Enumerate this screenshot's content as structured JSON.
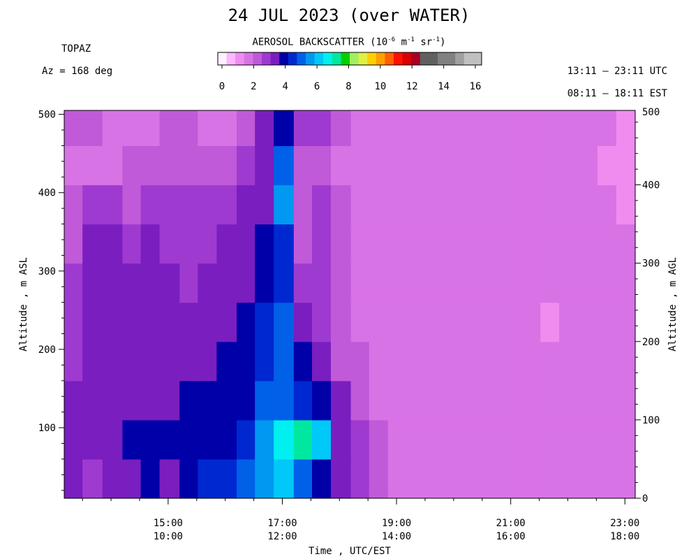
{
  "title": "24 JUL 2023 (over WATER)",
  "site": "TOPAZ",
  "azimuth": "Az = 168 deg",
  "utc_range": "13:11 – 23:11 UTC",
  "est_range": "08:11 – 18:11 EST",
  "colorbar": {
    "title_prefix": "AEROSOL BACKSCATTER (10",
    "title_exp1": "-6",
    "title_mid1": " m",
    "title_exp2": "-1",
    "title_mid2": " sr",
    "title_exp3": "-1",
    "title_suffix": ")",
    "ticks": [
      "0",
      "2",
      "4",
      "6",
      "8",
      "10",
      "12",
      "14",
      "16"
    ],
    "colors": [
      "#fff0ff",
      "#ffb8ff",
      "#f08cf0",
      "#d873e6",
      "#c05ad8",
      "#9f3ad0",
      "#7a1ec0",
      "#0000a8",
      "#0028d0",
      "#0060e8",
      "#0098f0",
      "#00c8f8",
      "#00f0f0",
      "#00e8a0",
      "#00d000",
      "#a0f060",
      "#e0f040",
      "#ffd000",
      "#ffa000",
      "#ff6000",
      "#ff1000",
      "#d80000",
      "#a80020",
      "#606060",
      "#606060",
      "#808080",
      "#808080",
      "#a0a0a0",
      "#c0c0c0",
      "#c0c0c0"
    ]
  },
  "axes": {
    "xlabel": "Time , UTC/EST",
    "ylabel_left": "Altitude , m ASL",
    "ylabel_right": "Altitude , m AGL",
    "left_ticks": [
      "100",
      "200",
      "300",
      "400",
      "500"
    ],
    "right_ticks": [
      "0",
      "100",
      "200",
      "300",
      "400",
      "500"
    ],
    "x_ticks_utc": [
      "15:00",
      "17:00",
      "19:00",
      "21:00",
      "23:00"
    ],
    "x_ticks_est": [
      "10:00",
      "12:00",
      "14:00",
      "16:00",
      "18:00"
    ]
  },
  "chart_data": {
    "type": "heatmap",
    "title": "24 JUL 2023 (over WATER)",
    "xlabel": "Time , UTC/EST",
    "ylabel": "Altitude , m ASL",
    "y2label": "Altitude , m AGL",
    "x_range_utc": [
      "13:11",
      "23:11"
    ],
    "y_range_m_asl": [
      10,
      505
    ],
    "value_units": "10^-6 m^-1 sr^-1",
    "colorbar_range": [
      0,
      16
    ],
    "x_edges_hours_utc": [
      13.18,
      13.5,
      13.85,
      14.2,
      14.52,
      14.85,
      15.2,
      15.52,
      15.85,
      16.2,
      16.52,
      16.85,
      17.2,
      17.52,
      17.85,
      18.2,
      18.52,
      18.85,
      19.2,
      19.52,
      19.85,
      20.2,
      20.52,
      20.85,
      21.2,
      21.52,
      21.85,
      22.2,
      22.52,
      22.85,
      23.18
    ],
    "y_edges_m": [
      10,
      60,
      110,
      160,
      210,
      260,
      310,
      360,
      410,
      460,
      505
    ],
    "z": [
      [
        3.2,
        3.0,
        3.4,
        3.6,
        3.8,
        3.6,
        4.0,
        4.4,
        4.4,
        4.8,
        5.6,
        6.0,
        5.0,
        3.8,
        3.2,
        2.8,
        2.2,
        2.0,
        2.0,
        2.0,
        2.0,
        2.0,
        2.0,
        2.0,
        2.0,
        2.0,
        2.0,
        2.0,
        2.0,
        2.0
      ],
      [
        3.4,
        3.6,
        3.4,
        3.8,
        3.8,
        3.8,
        4.0,
        4.0,
        4.2,
        4.6,
        5.8,
        6.4,
        7.0,
        6.2,
        3.6,
        3.0,
        2.4,
        2.0,
        2.0,
        2.0,
        2.0,
        2.0,
        2.0,
        2.0,
        2.0,
        2.0,
        2.0,
        2.0,
        2.0,
        2.0
      ],
      [
        3.4,
        3.6,
        3.6,
        3.4,
        3.6,
        3.6,
        3.8,
        4.0,
        4.0,
        4.0,
        4.8,
        5.0,
        4.6,
        4.2,
        3.2,
        2.6,
        2.0,
        2.0,
        2.0,
        2.0,
        2.0,
        2.0,
        2.0,
        2.0,
        2.0,
        2.0,
        2.0,
        2.0,
        2.0,
        2.0
      ],
      [
        3.0,
        3.4,
        3.4,
        3.2,
        3.2,
        3.4,
        3.4,
        3.6,
        3.8,
        4.0,
        4.6,
        4.8,
        3.8,
        3.2,
        2.4,
        2.2,
        1.8,
        1.8,
        1.8,
        1.8,
        1.8,
        1.8,
        1.8,
        1.8,
        1.8,
        1.8,
        1.8,
        1.8,
        1.8,
        1.8
      ],
      [
        3.0,
        3.2,
        3.4,
        3.2,
        3.2,
        3.2,
        3.4,
        3.2,
        3.4,
        3.8,
        4.4,
        4.8,
        3.4,
        2.8,
        2.4,
        1.8,
        1.8,
        1.8,
        1.8,
        1.8,
        1.8,
        1.6,
        1.8,
        1.8,
        1.8,
        1.4,
        1.6,
        1.6,
        1.6,
        1.6
      ],
      [
        3.0,
        3.4,
        3.4,
        3.2,
        3.2,
        3.2,
        3.0,
        3.2,
        3.4,
        3.6,
        3.8,
        4.6,
        2.8,
        2.8,
        2.2,
        1.8,
        1.8,
        1.8,
        1.8,
        1.8,
        1.8,
        1.8,
        1.8,
        1.8,
        1.8,
        1.8,
        1.8,
        1.8,
        1.8,
        1.8
      ],
      [
        2.6,
        3.2,
        3.2,
        3.0,
        3.2,
        3.0,
        2.8,
        3.0,
        3.2,
        3.6,
        3.8,
        4.6,
        2.6,
        2.8,
        2.2,
        1.8,
        1.8,
        1.8,
        1.8,
        1.8,
        1.8,
        1.8,
        1.8,
        1.8,
        1.8,
        1.8,
        1.8,
        1.8,
        1.8,
        1.8
      ],
      [
        2.4,
        2.8,
        2.8,
        2.6,
        2.8,
        2.8,
        2.8,
        2.8,
        3.0,
        3.2,
        3.6,
        5.6,
        2.6,
        2.8,
        2.2,
        1.8,
        1.6,
        1.6,
        1.6,
        1.6,
        1.6,
        1.6,
        1.6,
        1.6,
        1.6,
        1.6,
        1.6,
        1.6,
        1.6,
        1.4
      ],
      [
        1.8,
        1.8,
        1.8,
        2.4,
        2.4,
        2.6,
        2.6,
        2.6,
        2.6,
        2.8,
        3.2,
        4.8,
        2.6,
        2.4,
        2.0,
        1.6,
        1.6,
        1.6,
        1.6,
        1.6,
        1.6,
        1.6,
        1.6,
        1.6,
        1.6,
        1.6,
        1.6,
        1.6,
        1.4,
        1.4
      ],
      [
        2.2,
        2.6,
        2.0,
        2.0,
        2.0,
        2.2,
        2.4,
        2.0,
        2.0,
        2.2,
        3.2,
        4.2,
        3.0,
        2.8,
        2.4,
        1.8,
        1.8,
        1.8,
        1.8,
        1.8,
        1.8,
        1.8,
        1.8,
        1.8,
        1.8,
        1.6,
        1.8,
        1.8,
        1.8,
        1.4
      ]
    ]
  }
}
